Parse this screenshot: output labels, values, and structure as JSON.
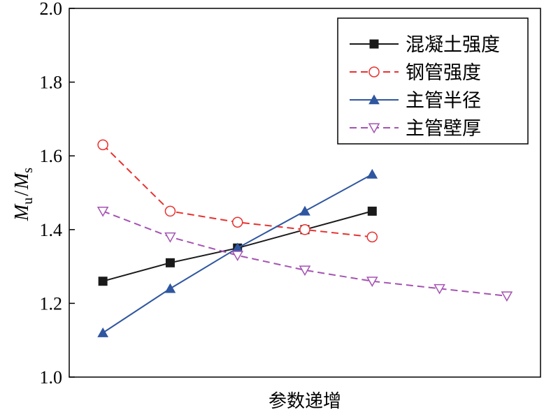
{
  "chart_data": {
    "type": "line",
    "xlabel": "参数递增",
    "ylabel_main": "M",
    "ylabel_sub1": "u",
    "ylabel_mid": "/",
    "ylabel_main2": "M",
    "ylabel_sub2": "s",
    "ylim": [
      1.0,
      2.0
    ],
    "yticks": [
      "1.0",
      "1.2",
      "1.4",
      "1.6",
      "1.8",
      "2.0"
    ],
    "xlim": [
      0.5,
      7.5
    ],
    "xticks_shown": false,
    "grid": false,
    "legend_position": "top-right",
    "series": [
      {
        "name": "混凝土强度",
        "color": "#1a1a1a",
        "line_style": "solid",
        "marker": "filled-square",
        "x": [
          1,
          2,
          3,
          4,
          5
        ],
        "y": [
          1.26,
          1.31,
          1.35,
          1.4,
          1.45
        ]
      },
      {
        "name": "钢管强度",
        "color": "#e8312f",
        "line_style": "dashed",
        "marker": "open-circle",
        "x": [
          1,
          2,
          3,
          4,
          5
        ],
        "y": [
          1.63,
          1.45,
          1.42,
          1.4,
          1.38
        ]
      },
      {
        "name": "主管半径",
        "color": "#2f56a0",
        "line_style": "solid",
        "marker": "filled-triangle-up",
        "x": [
          1,
          2,
          3,
          4,
          5
        ],
        "y": [
          1.12,
          1.24,
          1.35,
          1.45,
          1.55
        ]
      },
      {
        "name": "主管壁厚",
        "color": "#a552b3",
        "line_style": "dashed",
        "marker": "open-triangle-down",
        "x": [
          1,
          2,
          3,
          4,
          5,
          6,
          7
        ],
        "y": [
          1.45,
          1.38,
          1.33,
          1.29,
          1.26,
          1.24,
          1.22
        ]
      }
    ]
  }
}
